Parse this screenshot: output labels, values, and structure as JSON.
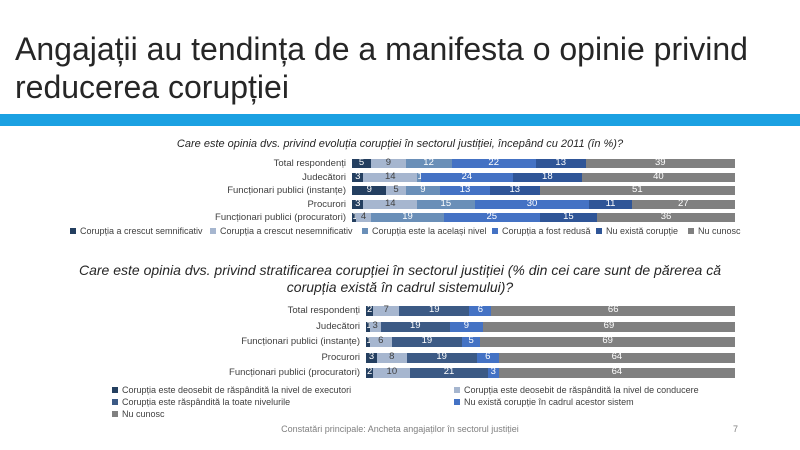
{
  "slide": {
    "title": "Angajații au tendința de a manifesta o opinie privind reducerea corupției",
    "footer": "Constatări principale: Ancheta angajaților în sectorul justiției",
    "page_number": "7",
    "accent_color": "#1ba1e2"
  },
  "chart_data": [
    {
      "type": "bar",
      "orientation": "horizontal-stacked-100",
      "title": "Care este opinia dvs. privind evoluția corupției în sectorul justiției, începând cu 2011 (în %)?",
      "categories": [
        "Total respondenți",
        "Judecători",
        "Funcționari publici (instanțe)",
        "Procurori",
        "Funcționari publici (procuratori)"
      ],
      "series": [
        {
          "name": "Corupția a crescut semnificativ",
          "color": "#243f60",
          "values": [
            5,
            3,
            9,
            3,
            1
          ]
        },
        {
          "name": "Corupția a crescut nesemnificativ",
          "color": "#a6b6cf",
          "values": [
            9,
            14,
            5,
            14,
            4
          ]
        },
        {
          "name": "Corupția este la același nivel",
          "color": "#6a8fb8",
          "values": [
            12,
            1,
            9,
            15,
            19
          ]
        },
        {
          "name": "Corupția a fost redusă",
          "color": "#4472c4",
          "values": [
            22,
            24,
            13,
            30,
            25
          ]
        },
        {
          "name": "Nu există corupție",
          "color": "#2f5597",
          "values": [
            13,
            18,
            13,
            11,
            15
          ]
        },
        {
          "name": "Nu cunosc",
          "color": "#808080",
          "values": [
            39,
            40,
            51,
            27,
            36
          ]
        }
      ],
      "legend_position": "bottom"
    },
    {
      "type": "bar",
      "orientation": "horizontal-stacked-100",
      "title": "Care este opinia dvs. privind stratificarea corupției în sectorul justiției (% din cei care sunt de părerea că corupția există în cadrul sistemului)?",
      "categories": [
        "Total respondenți",
        "Judecători",
        "Funcționari publici (instanțe)",
        "Procurori",
        "Funcționari publici (procuratori)"
      ],
      "series": [
        {
          "name": "Corupția este deosebit de răspândită la nivel de executori",
          "color": "#243f60",
          "values": [
            2,
            1,
            1,
            3,
            2
          ]
        },
        {
          "name": "Corupția este deosebit de răspândită la nivel de conducere",
          "color": "#a6b6cf",
          "values": [
            7,
            3,
            6,
            8,
            10
          ]
        },
        {
          "name": "Corupția este răspândită la toate nivelurile",
          "color": "#3c5a85",
          "values": [
            19,
            19,
            19,
            19,
            21
          ]
        },
        {
          "name": "Nu există corupție în cadrul acestor sistem",
          "color": "#4472c4",
          "values": [
            6,
            9,
            5,
            6,
            3
          ]
        },
        {
          "name": "Nu cunosc",
          "color": "#808080",
          "values": [
            66,
            69,
            69,
            64,
            64
          ]
        }
      ],
      "legend_position": "bottom"
    }
  ]
}
